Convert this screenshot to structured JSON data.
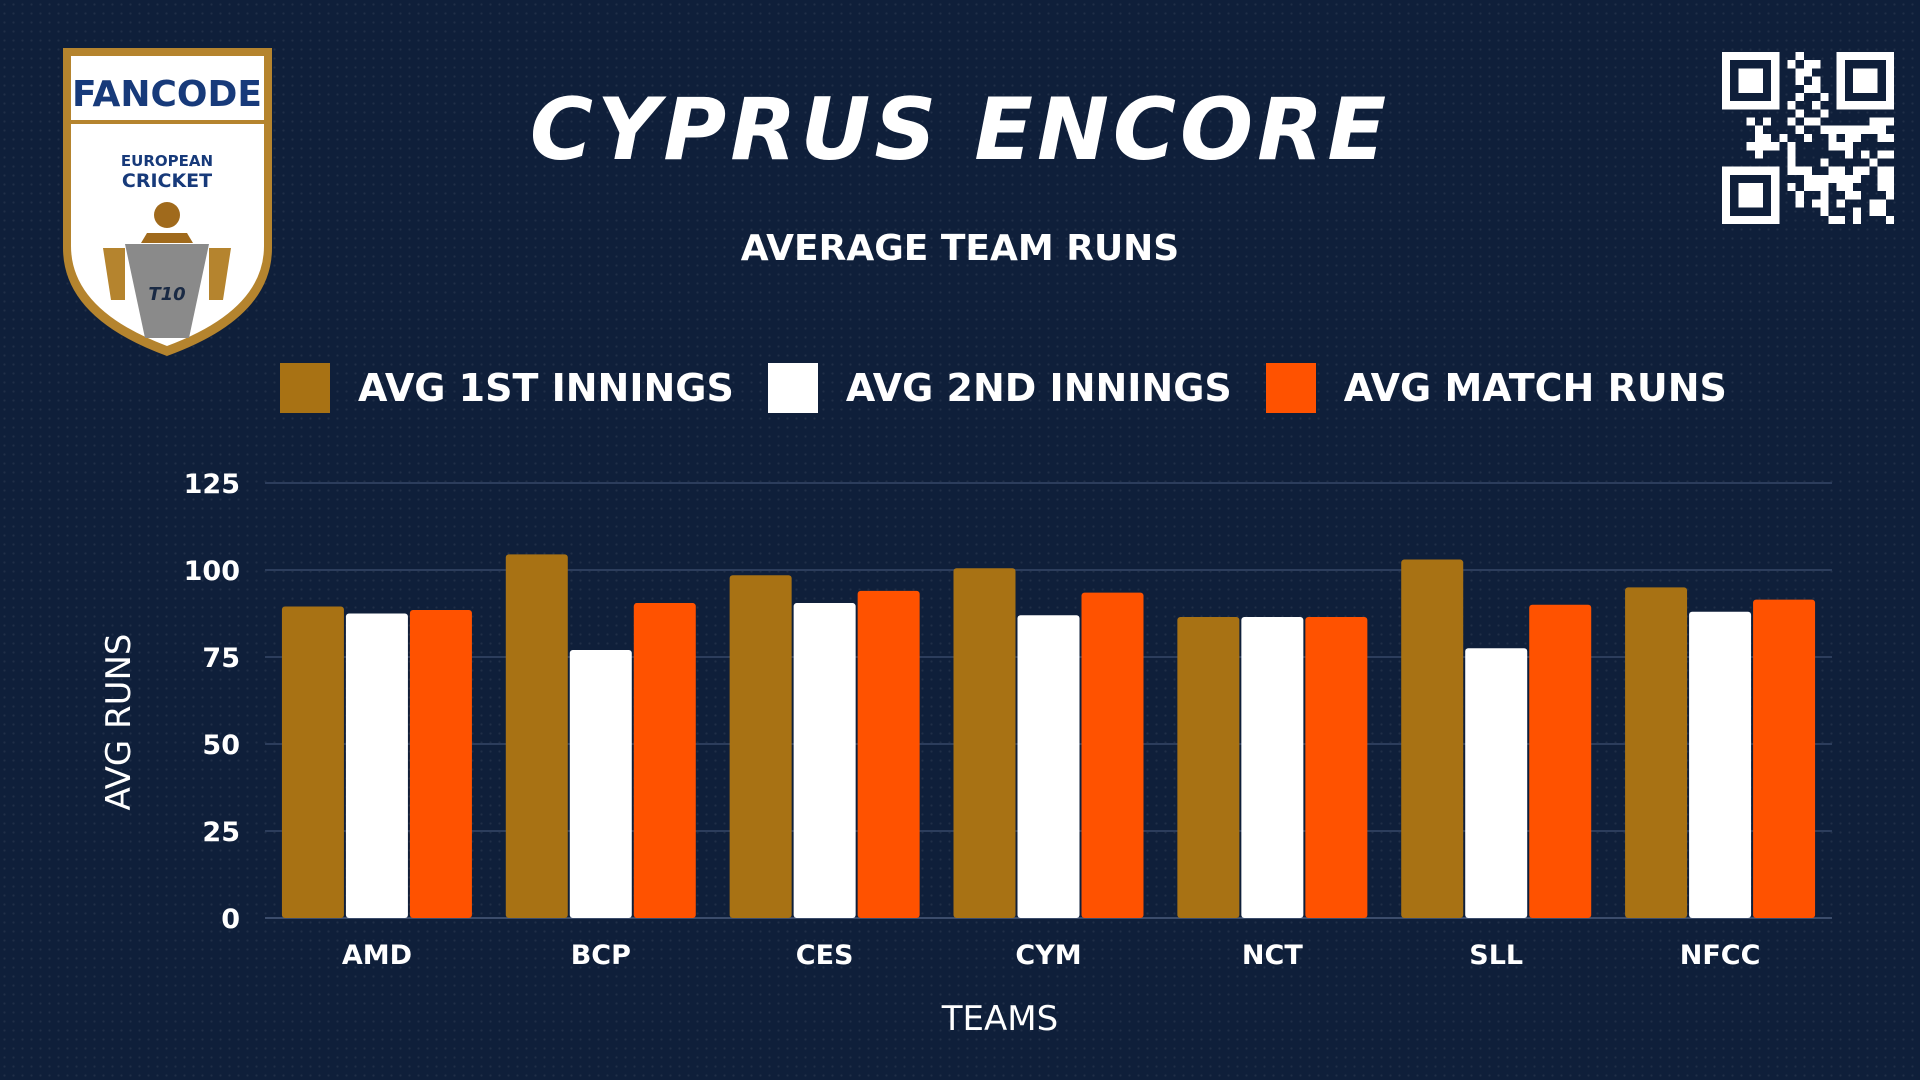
{
  "header": {
    "title": "CYPRUS ENCORE",
    "subtitle": "AVERAGE TEAM RUNS"
  },
  "logo": {
    "brand": "FANCODE",
    "line1": "EUROPEAN",
    "line2": "CRICKET",
    "badge": "T10"
  },
  "colors": {
    "background": "#0f1f3a",
    "first_innings": "#a87214",
    "second_innings": "#ffffff",
    "match_runs": "#ff5200",
    "gridline": "#2c3d5c"
  },
  "chart_data": {
    "type": "bar",
    "title": "AVERAGE TEAM RUNS",
    "xlabel": "TEAMS",
    "ylabel": "AVG RUNS",
    "ylim": [
      0,
      125
    ],
    "yticks": [
      0,
      25,
      50,
      75,
      100,
      125
    ],
    "grid": true,
    "legend_position": "top",
    "categories": [
      "AMD",
      "BCP",
      "CES",
      "CYM",
      "NCT",
      "SLL",
      "NFCC"
    ],
    "series": [
      {
        "name": "AVG 1ST INNINGS",
        "color": "#a87214",
        "values": [
          89.5,
          104.5,
          98.5,
          100.5,
          86.5,
          103,
          95
        ]
      },
      {
        "name": "AVG 2ND INNINGS",
        "color": "#ffffff",
        "values": [
          87.5,
          77,
          90.5,
          87,
          86.5,
          77.5,
          88
        ]
      },
      {
        "name": "AVG MATCH RUNS",
        "color": "#ff5200",
        "values": [
          88.5,
          90.5,
          94,
          93.5,
          86.5,
          90,
          91.5
        ]
      }
    ]
  }
}
